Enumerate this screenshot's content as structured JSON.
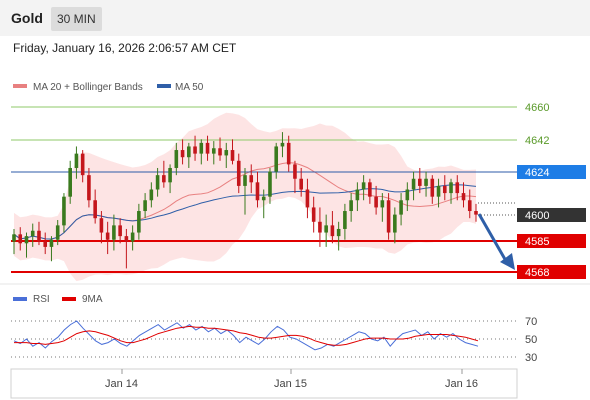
{
  "header": {
    "instrument": "Gold",
    "timeframe": "30 MIN",
    "datetime": "Friday, January 16, 2026 2:06:57 AM CET"
  },
  "legend": {
    "ma20": "MA 20 + Bollinger Bands",
    "ma50": "MA 50",
    "rsi": "RSI",
    "rsi_ma": "9MA"
  },
  "colors": {
    "up_candle": "#3a7a1e",
    "down_candle": "#c4161c",
    "ma20": "#e88080",
    "ma50": "#2f5fa8",
    "bollinger_fill": "#fde1e1",
    "resistance": "#8fca6a",
    "pivot_line": "#2d5ba8",
    "support": "#e00000",
    "price_tag": "#333333",
    "pivot_tag": "#1e7de6",
    "arrow": "#2f5fa8",
    "rsi_line": "#4a6fd8",
    "rsi_ma_line": "#e00000"
  },
  "chart_data": {
    "type": "candlestick",
    "x_ticks": [
      "Jan 14",
      "Jan 15",
      "Jan 16"
    ],
    "y_range": [
      4555,
      4670
    ],
    "levels": [
      {
        "label": "4660",
        "value": 4660,
        "kind": "resistance"
      },
      {
        "label": "4642",
        "value": 4642,
        "kind": "resistance"
      },
      {
        "label": "4624",
        "value": 4624,
        "kind": "pivot"
      },
      {
        "label": "4600",
        "value": 4600,
        "kind": "current"
      },
      {
        "label": "4585",
        "value": 4585,
        "kind": "support"
      },
      {
        "label": "4568",
        "value": 4568,
        "kind": "support"
      }
    ],
    "projection": {
      "from": 4600,
      "to": 4568
    },
    "candles": [
      [
        4585,
        4592,
        4578,
        4589
      ],
      [
        4589,
        4593,
        4580,
        4584
      ],
      [
        4584,
        4590,
        4576,
        4588
      ],
      [
        4588,
        4595,
        4582,
        4591
      ],
      [
        4591,
        4596,
        4583,
        4585
      ],
      [
        4585,
        4590,
        4578,
        4582
      ],
      [
        4582,
        4588,
        4574,
        4586
      ],
      [
        4586,
        4597,
        4583,
        4594
      ],
      [
        4594,
        4612,
        4590,
        4610
      ],
      [
        4610,
        4630,
        4606,
        4626
      ],
      [
        4626,
        4638,
        4620,
        4634
      ],
      [
        4634,
        4636,
        4618,
        4622
      ],
      [
        4622,
        4626,
        4604,
        4608
      ],
      [
        4608,
        4614,
        4595,
        4598
      ],
      [
        4598,
        4602,
        4584,
        4590
      ],
      [
        4590,
        4596,
        4578,
        4586
      ],
      [
        4586,
        4600,
        4580,
        4594
      ],
      [
        4594,
        4598,
        4584,
        4588
      ],
      [
        4588,
        4592,
        4570,
        4585
      ],
      [
        4585,
        4594,
        4580,
        4590
      ],
      [
        4590,
        4606,
        4586,
        4602
      ],
      [
        4602,
        4612,
        4598,
        4608
      ],
      [
        4608,
        4618,
        4604,
        4614
      ],
      [
        4614,
        4626,
        4610,
        4622
      ],
      [
        4622,
        4630,
        4615,
        4618
      ],
      [
        4618,
        4628,
        4612,
        4626
      ],
      [
        4626,
        4640,
        4622,
        4636
      ],
      [
        4636,
        4642,
        4628,
        4632
      ],
      [
        4632,
        4640,
        4626,
        4638
      ],
      [
        4638,
        4644,
        4630,
        4634
      ],
      [
        4634,
        4642,
        4628,
        4640
      ],
      [
        4640,
        4644,
        4630,
        4634
      ],
      [
        4634,
        4641,
        4628,
        4637
      ],
      [
        4637,
        4643,
        4630,
        4633
      ],
      [
        4633,
        4640,
        4626,
        4636
      ],
      [
        4636,
        4642,
        4628,
        4630
      ],
      [
        4630,
        4634,
        4612,
        4616
      ],
      [
        4616,
        4626,
        4600,
        4622
      ],
      [
        4622,
        4628,
        4612,
        4618
      ],
      [
        4618,
        4624,
        4604,
        4608
      ],
      [
        4608,
        4614,
        4598,
        4610
      ],
      [
        4610,
        4626,
        4606,
        4624
      ],
      [
        4624,
        4640,
        4620,
        4638
      ],
      [
        4638,
        4646,
        4632,
        4640
      ],
      [
        4640,
        4644,
        4624,
        4628
      ],
      [
        4628,
        4630,
        4612,
        4620
      ],
      [
        4620,
        4626,
        4610,
        4614
      ],
      [
        4614,
        4620,
        4598,
        4604
      ],
      [
        4604,
        4610,
        4590,
        4596
      ],
      [
        4596,
        4604,
        4582,
        4590
      ],
      [
        4590,
        4600,
        4582,
        4594
      ],
      [
        4594,
        4602,
        4584,
        4588
      ],
      [
        4588,
        4596,
        4580,
        4592
      ],
      [
        4592,
        4606,
        4586,
        4602
      ],
      [
        4602,
        4612,
        4596,
        4608
      ],
      [
        4608,
        4618,
        4602,
        4614
      ],
      [
        4614,
        4622,
        4608,
        4618
      ],
      [
        4618,
        4620,
        4606,
        4610
      ],
      [
        4610,
        4616,
        4600,
        4604
      ],
      [
        4604,
        4612,
        4596,
        4608
      ],
      [
        4608,
        4612,
        4586,
        4590
      ],
      [
        4590,
        4604,
        4584,
        4600
      ],
      [
        4600,
        4612,
        4594,
        4608
      ],
      [
        4608,
        4618,
        4602,
        4614
      ],
      [
        4614,
        4624,
        4608,
        4620
      ],
      [
        4620,
        4626,
        4612,
        4616
      ],
      [
        4616,
        4624,
        4610,
        4620
      ],
      [
        4620,
        4622,
        4606,
        4610
      ],
      [
        4610,
        4620,
        4604,
        4616
      ],
      [
        4616,
        4622,
        4608,
        4612
      ],
      [
        4612,
        4620,
        4606,
        4618
      ],
      [
        4618,
        4622,
        4608,
        4612
      ],
      [
        4612,
        4618,
        4604,
        4608
      ],
      [
        4608,
        4614,
        4598,
        4602
      ],
      [
        4602,
        4606,
        4596,
        4600
      ]
    ],
    "rsi": {
      "ticks": [
        70,
        50,
        30
      ],
      "range": [
        20,
        80
      ],
      "rsi_values": [
        48,
        45,
        50,
        42,
        46,
        40,
        47,
        52,
        60,
        66,
        70,
        62,
        55,
        48,
        44,
        46,
        50,
        45,
        42,
        48,
        54,
        58,
        62,
        66,
        60,
        64,
        68,
        62,
        66,
        60,
        64,
        58,
        62,
        56,
        60,
        54,
        46,
        52,
        48,
        44,
        50,
        58,
        64,
        60,
        52,
        50,
        46,
        42,
        38,
        40,
        44,
        42,
        46,
        50,
        54,
        58,
        56,
        50,
        48,
        52,
        42,
        50,
        56,
        58,
        60,
        54,
        58,
        50,
        56,
        52,
        56,
        50,
        46,
        44,
        42
      ],
      "ma_values": [
        46,
        46,
        46,
        45,
        45,
        44,
        45,
        46,
        48,
        52,
        56,
        58,
        59,
        58,
        56,
        54,
        51,
        48,
        46,
        46,
        48,
        50,
        53,
        56,
        58,
        60,
        62,
        63,
        64,
        63,
        63,
        62,
        62,
        61,
        60,
        59,
        57,
        56,
        54,
        52,
        51,
        51,
        52,
        53,
        54,
        54,
        53,
        51,
        48,
        46,
        44,
        43,
        43,
        44,
        46,
        48,
        50,
        51,
        51,
        51,
        50,
        50,
        50,
        51,
        53,
        54,
        55,
        55,
        55,
        55,
        54,
        53,
        52,
        50,
        48
      ]
    }
  }
}
